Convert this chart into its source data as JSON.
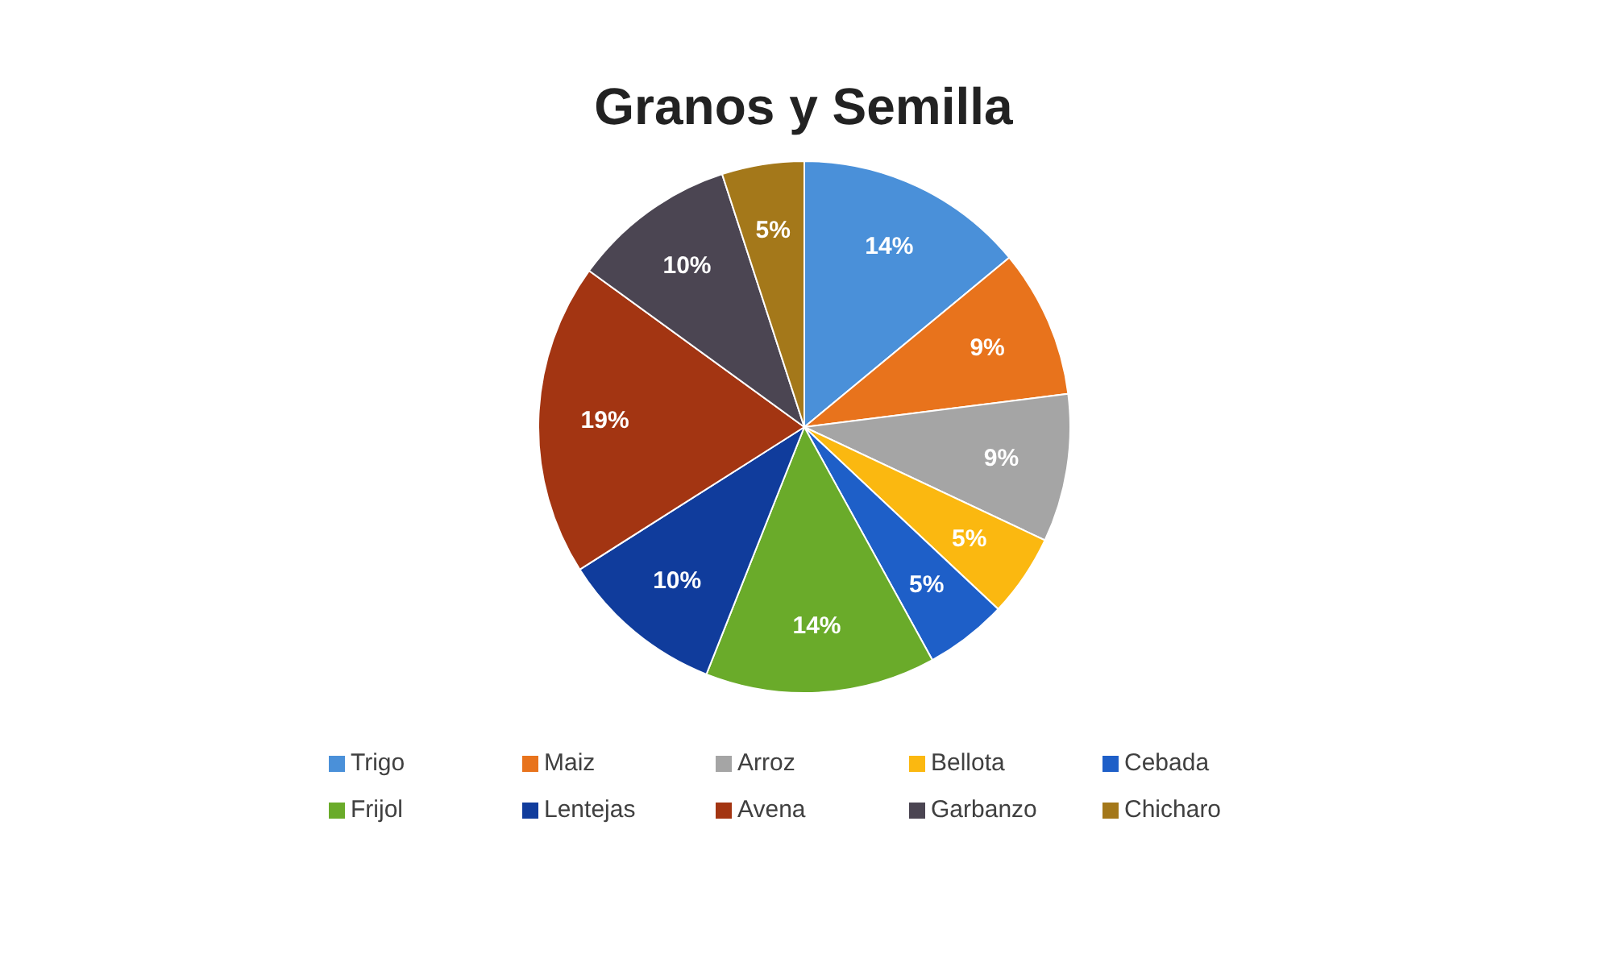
{
  "chart_data": {
    "type": "pie",
    "title": "Granos y Semilla",
    "categories": [
      "Trigo",
      "Maiz",
      "Arroz",
      "Bellota",
      "Cebada",
      "Frijol",
      "Lentejas",
      "Avena",
      "Garbanzo",
      "Chicharo"
    ],
    "values": [
      14,
      9,
      9,
      5,
      5,
      14,
      10,
      19,
      10,
      5
    ],
    "value_labels": [
      "14%",
      "9%",
      "9%",
      "5%",
      "5%",
      "14%",
      "10%",
      "19%",
      "10%",
      "5%"
    ],
    "colors": [
      "#4a90d9",
      "#e8731c",
      "#a5a5a5",
      "#fbb810",
      "#1e5fc8",
      "#6aab2a",
      "#103c9c",
      "#a33512",
      "#4b4552",
      "#a4781a"
    ],
    "legend": "bottom"
  }
}
